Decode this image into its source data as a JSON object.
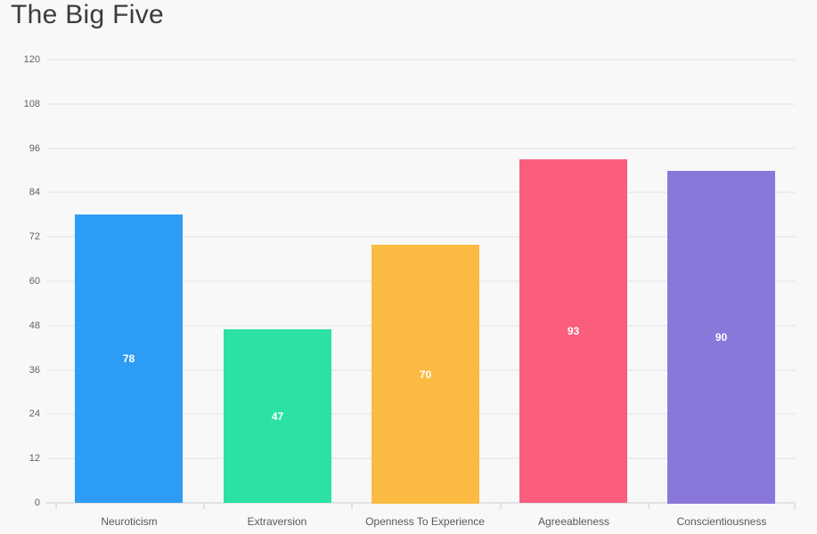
{
  "window": {
    "background": "#f8f8f9"
  },
  "chart_data": {
    "type": "bar",
    "title": "The Big Five",
    "categories": [
      "Neuroticism",
      "Extraversion",
      "Openness To Experience",
      "Agreeableness",
      "Conscientiousness"
    ],
    "values": [
      78,
      47,
      70,
      93,
      90
    ],
    "value_labels": [
      "78",
      "47",
      "70",
      "93",
      "90"
    ],
    "bar_colors": [
      "#2d9cf4",
      "#2be2a4",
      "#fbba42",
      "#fa5e7c",
      "#8a77da"
    ],
    "value_label_color": "#ffffff",
    "y_ticks": [
      0,
      12,
      24,
      36,
      48,
      60,
      72,
      84,
      96,
      108,
      120
    ],
    "ylim": [
      0,
      120
    ],
    "xlabel": "",
    "ylabel": "",
    "grid": true,
    "legend": false,
    "gridline_color": "#ededf1",
    "axis_line_color": "#e2e2e6",
    "tick_label_color": "#616161",
    "title_color": "#3c3c3c"
  }
}
